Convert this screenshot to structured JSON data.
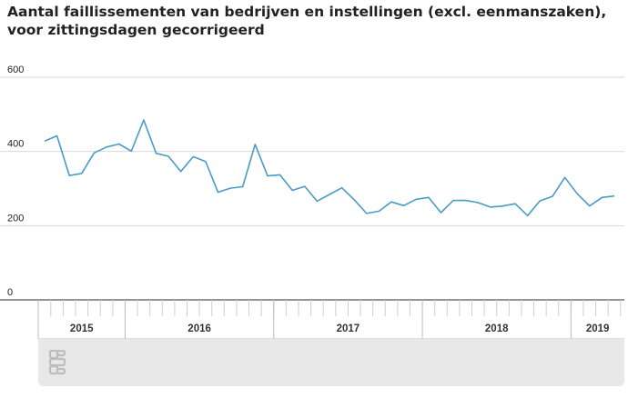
{
  "title": "Aantal faillissementen van bedrijven en instellingen (excl. eenmanszaken), voor zittingsdagen gecorrigeerd",
  "chart_data": {
    "type": "line",
    "title": "Aantal faillissementen van bedrijven en instellingen (excl. eenmanszaken), voor zittingsdagen gecorrigeerd",
    "xlabel": "",
    "ylabel": "",
    "ylim": [
      0,
      600
    ],
    "yticks": [
      0,
      200,
      400,
      600
    ],
    "grid": true,
    "legend": "none",
    "line_color": "#4a9cc5",
    "x_groups": [
      {
        "label": "2015",
        "months": 7
      },
      {
        "label": "2016",
        "months": 12
      },
      {
        "label": "2017",
        "months": 12
      },
      {
        "label": "2018",
        "months": 12
      },
      {
        "label": "2019",
        "months": 4
      }
    ],
    "x": [
      "2015-06",
      "2015-07",
      "2015-08",
      "2015-09",
      "2015-10",
      "2015-11",
      "2015-12",
      "2016-01",
      "2016-02",
      "2016-03",
      "2016-04",
      "2016-05",
      "2016-06",
      "2016-07",
      "2016-08",
      "2016-09",
      "2016-10",
      "2016-11",
      "2016-12",
      "2017-01",
      "2017-02",
      "2017-03",
      "2017-04",
      "2017-05",
      "2017-06",
      "2017-07",
      "2017-08",
      "2017-09",
      "2017-10",
      "2017-11",
      "2017-12",
      "2018-01",
      "2018-02",
      "2018-03",
      "2018-04",
      "2018-05",
      "2018-06",
      "2018-07",
      "2018-08",
      "2018-09",
      "2018-10",
      "2018-11",
      "2018-12",
      "2019-01",
      "2019-02",
      "2019-03",
      "2019-04"
    ],
    "series": [
      {
        "values": [
          428,
          442,
          335,
          341,
          396,
          412,
          420,
          401,
          485,
          395,
          387,
          346,
          386,
          373,
          290,
          301,
          305,
          419,
          334,
          337,
          295,
          306,
          266,
          284,
          302,
          270,
          233,
          239,
          264,
          254,
          271,
          276,
          235,
          268,
          268,
          262,
          250,
          253,
          259,
          227,
          267,
          279,
          330,
          286,
          253,
          276,
          280
        ]
      }
    ]
  }
}
